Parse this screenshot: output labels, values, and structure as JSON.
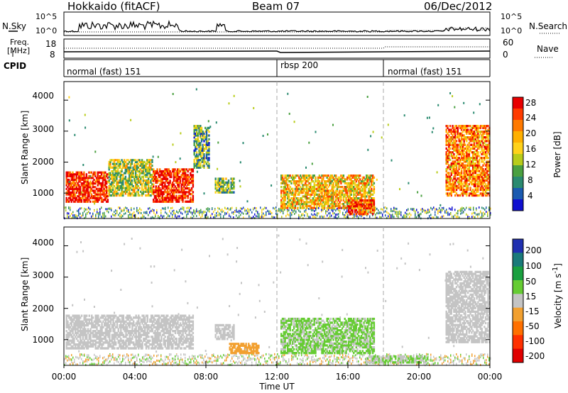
{
  "header": {
    "station": "Hokkaido (fitACF)",
    "beam": "Beam 07",
    "date": "06/Dec/2012"
  },
  "noise_panel": {
    "left_label": "N.Sky",
    "right_label": "N.Search",
    "left_ticks": [
      "10^5",
      "10^0"
    ],
    "right_ticks": [
      "10^5",
      "10^0"
    ]
  },
  "freq_panel": {
    "label_line1": "Freq.",
    "label_line2": "[MHz]",
    "left_ticks": [
      "18",
      "8"
    ],
    "right_ticks": [
      "60",
      "0"
    ],
    "right_label": "Nave"
  },
  "cpid_panel": {
    "label": "CPID",
    "segments": [
      {
        "name": "normal (fast) 151",
        "start_h": 0,
        "end_h": 12
      },
      {
        "name": "rbsp 200",
        "start_h": 12,
        "end_h": 18
      },
      {
        "name": "normal (fast) 151",
        "start_h": 18,
        "end_h": 24
      }
    ]
  },
  "axes": {
    "xlabel": "Time UT",
    "x_ticks": [
      "00:00",
      "04:00",
      "08:00",
      "12:00",
      "16:00",
      "20:00",
      "00:00"
    ],
    "ylabel": "Slant Range [km]",
    "y_ticks": [
      "4000",
      "3000",
      "2000",
      "1000"
    ]
  },
  "power_colorbar": {
    "label": "Power [dB]",
    "ticks": [
      "28",
      "24",
      "20",
      "16",
      "12",
      "8",
      "4"
    ],
    "colors": [
      "#e80000",
      "#ff3b00",
      "#ff7a00",
      "#ffb000",
      "#ffd21a",
      "#b8cc1a",
      "#4aa040",
      "#2a8a70",
      "#1a5ab0",
      "#1010d0"
    ]
  },
  "velocity_colorbar": {
    "label": "Velocity [m s^-1]",
    "ticks": [
      "200",
      "100",
      "50",
      "15",
      "-15",
      "-50",
      "-100",
      "-200"
    ],
    "colors": [
      "#2030b0",
      "#1a7a7a",
      "#1aa040",
      "#66cc33",
      "#c4c4c4",
      "#f2a030",
      "#ff7000",
      "#ff3000",
      "#e00000"
    ]
  },
  "chart_data": {
    "type": "heatmap",
    "title": "Hokkaido (fitACF) Beam 07 06/Dec/2012",
    "xlabel": "Time UT",
    "ylabel": "Slant Range [km]",
    "xlim_hours": [
      0,
      24
    ],
    "ylim_km": [
      180,
      4600
    ],
    "panels": [
      {
        "name": "Power",
        "units": "dB",
        "clim": [
          0,
          30
        ],
        "echo_regions": [
          {
            "t0": 0.1,
            "t1": 2.5,
            "r0": 700,
            "r1": 1700,
            "value": 28
          },
          {
            "t0": 2.5,
            "t1": 5.0,
            "r0": 900,
            "r1": 2100,
            "value": 14
          },
          {
            "t0": 5.0,
            "t1": 7.3,
            "r0": 700,
            "r1": 1800,
            "value": 28
          },
          {
            "t0": 7.3,
            "t1": 8.2,
            "r0": 1800,
            "r1": 3200,
            "value": 10
          },
          {
            "t0": 8.5,
            "t1": 9.6,
            "r0": 1000,
            "r1": 1500,
            "value": 12
          },
          {
            "t0": 12.2,
            "t1": 17.5,
            "r0": 500,
            "r1": 1600,
            "value": 18
          },
          {
            "t0": 16.0,
            "t1": 17.5,
            "r0": 300,
            "r1": 800,
            "value": 26
          },
          {
            "t0": 21.5,
            "t1": 24.0,
            "r0": 900,
            "r1": 3200,
            "value": 22
          }
        ]
      },
      {
        "name": "Velocity",
        "units": "m s^-1",
        "clim": [
          -250,
          250
        ],
        "echo_regions": [
          {
            "t0": 0.1,
            "t1": 7.3,
            "r0": 700,
            "r1": 1800,
            "value": 0
          },
          {
            "t0": 8.5,
            "t1": 9.6,
            "r0": 1000,
            "r1": 1500,
            "value": 0
          },
          {
            "t0": 9.3,
            "t1": 11.0,
            "r0": 550,
            "r1": 900,
            "value": -60
          },
          {
            "t0": 12.2,
            "t1": 17.5,
            "r0": 550,
            "r1": 1700,
            "value": 35
          },
          {
            "t0": 17.0,
            "t1": 20.5,
            "r0": 250,
            "r1": 500,
            "value": 30
          },
          {
            "t0": 21.5,
            "t1": 24.0,
            "r0": 900,
            "r1": 3200,
            "value": 5
          }
        ]
      }
    ]
  }
}
